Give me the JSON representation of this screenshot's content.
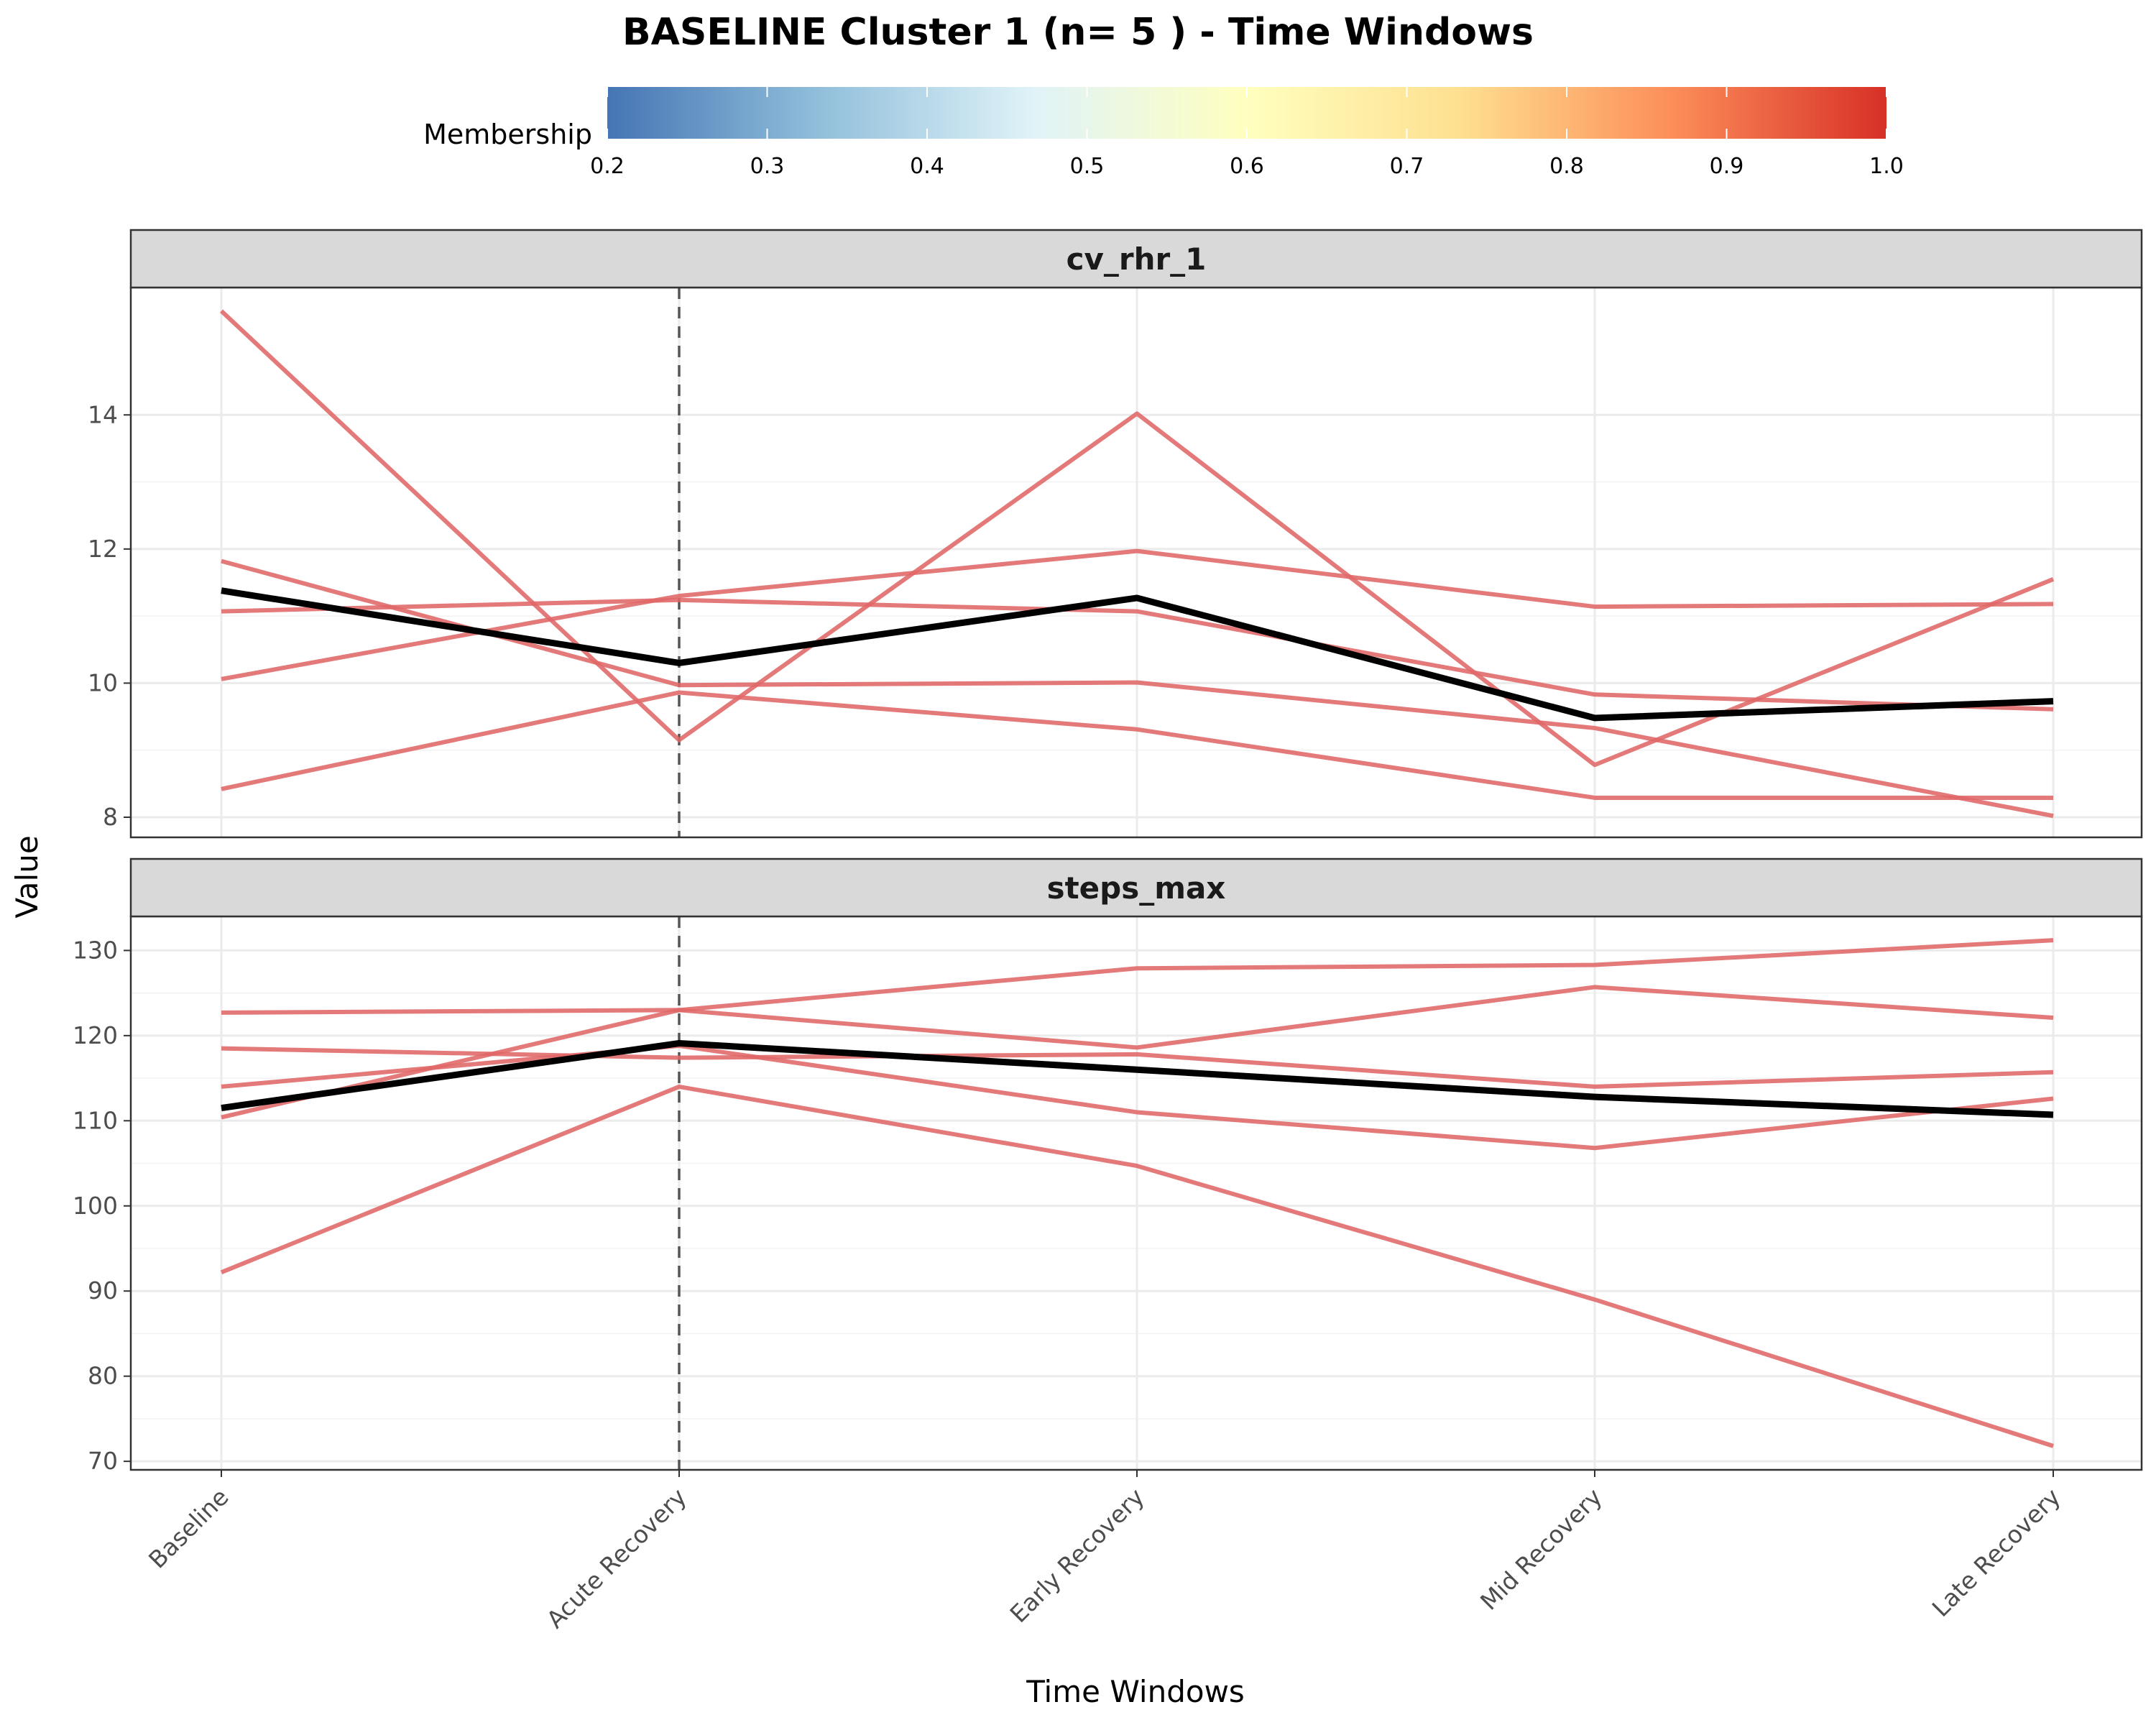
{
  "chart_data": {
    "type": "line",
    "title": "BASELINE Cluster 1 (n= 5 ) - Time Windows",
    "xlabel": "Time Windows",
    "ylabel": "Value",
    "categories": [
      "Baseline",
      "Acute Recovery",
      "Early Recovery",
      "Mid Recovery",
      "Late Recovery"
    ],
    "reference_line": {
      "category": "Acute Recovery",
      "style": "dashed"
    },
    "grid": true,
    "legend": {
      "title": "Membership",
      "placement": "top",
      "type": "colorbar",
      "range": [
        0.2,
        1.0
      ],
      "ticks": [
        "0.2",
        "0.3",
        "0.4",
        "0.5",
        "0.6",
        "0.7",
        "0.8",
        "0.9",
        "1.0"
      ],
      "colors": [
        "#4575b4",
        "#91bfdb",
        "#e0f3f8",
        "#ffffbf",
        "#fee090",
        "#fc8d59",
        "#d73027"
      ]
    },
    "colors": {
      "member_line": "#e06666",
      "mean_line": "#000000",
      "strip_fill": "#d9d9d9"
    },
    "panels": [
      {
        "name": "cv_rhr_1",
        "ylim": [
          7.7,
          15.9
        ],
        "yticks": [
          8,
          10,
          12,
          14
        ],
        "series": [
          {
            "values": [
              15.55,
              9.15,
              14.02,
              8.78,
              11.55
            ]
          },
          {
            "values": [
              11.82,
              9.97,
              10.01,
              9.33,
              8.02
            ]
          },
          {
            "values": [
              11.07,
              11.24,
              11.07,
              9.83,
              9.61
            ]
          },
          {
            "values": [
              10.06,
              11.3,
              11.97,
              11.14,
              11.18
            ]
          },
          {
            "values": [
              8.42,
              9.86,
              9.31,
              8.29,
              8.29
            ]
          }
        ],
        "mean": [
          11.38,
          10.3,
          11.27,
          9.48,
          9.73
        ]
      },
      {
        "name": "steps_max",
        "ylim": [
          69,
          134
        ],
        "yticks": [
          70,
          80,
          90,
          100,
          110,
          120,
          130
        ],
        "series": [
          {
            "values": [
              122.7,
              123.0,
              118.6,
              125.7,
              122.1
            ]
          },
          {
            "values": [
              118.5,
              117.4,
              117.8,
              114.0,
              115.7
            ]
          },
          {
            "values": [
              114.0,
              118.8,
              111.0,
              106.8,
              112.6
            ]
          },
          {
            "values": [
              110.4,
              123.0,
              127.9,
              128.3,
              131.2
            ]
          },
          {
            "values": [
              92.2,
              114.0,
              104.7,
              89.0,
              71.8
            ]
          }
        ],
        "mean": [
          111.5,
          119.1,
          116.0,
          112.8,
          110.7
        ]
      }
    ]
  }
}
